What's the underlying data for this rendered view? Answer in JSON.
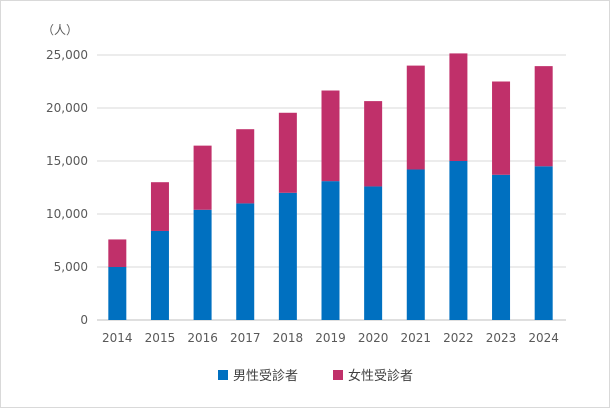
{
  "chart_data": {
    "type": "bar",
    "stacked": true,
    "unit_label": "（人）",
    "categories": [
      "2014",
      "2015",
      "2016",
      "2017",
      "2018",
      "2019",
      "2020",
      "2021",
      "2022",
      "2023",
      "2024"
    ],
    "series": [
      {
        "name": "男性受診者",
        "color": "#0070c0",
        "values": [
          5000,
          8400,
          10400,
          11000,
          12000,
          13100,
          12600,
          14200,
          15000,
          13700,
          14500
        ]
      },
      {
        "name": "女性受診者",
        "color": "#c0306a",
        "values": [
          2600,
          4600,
          6050,
          7000,
          7550,
          8550,
          8050,
          9800,
          10150,
          8800,
          9450
        ]
      }
    ],
    "ylim": [
      0,
      25000
    ],
    "yticks": [
      0,
      5000,
      10000,
      15000,
      20000,
      25000
    ],
    "ytick_labels": [
      "0",
      "5,000",
      "10,000",
      "15,000",
      "20,000",
      "25,000"
    ],
    "grid": true,
    "legend_position": "bottom"
  }
}
